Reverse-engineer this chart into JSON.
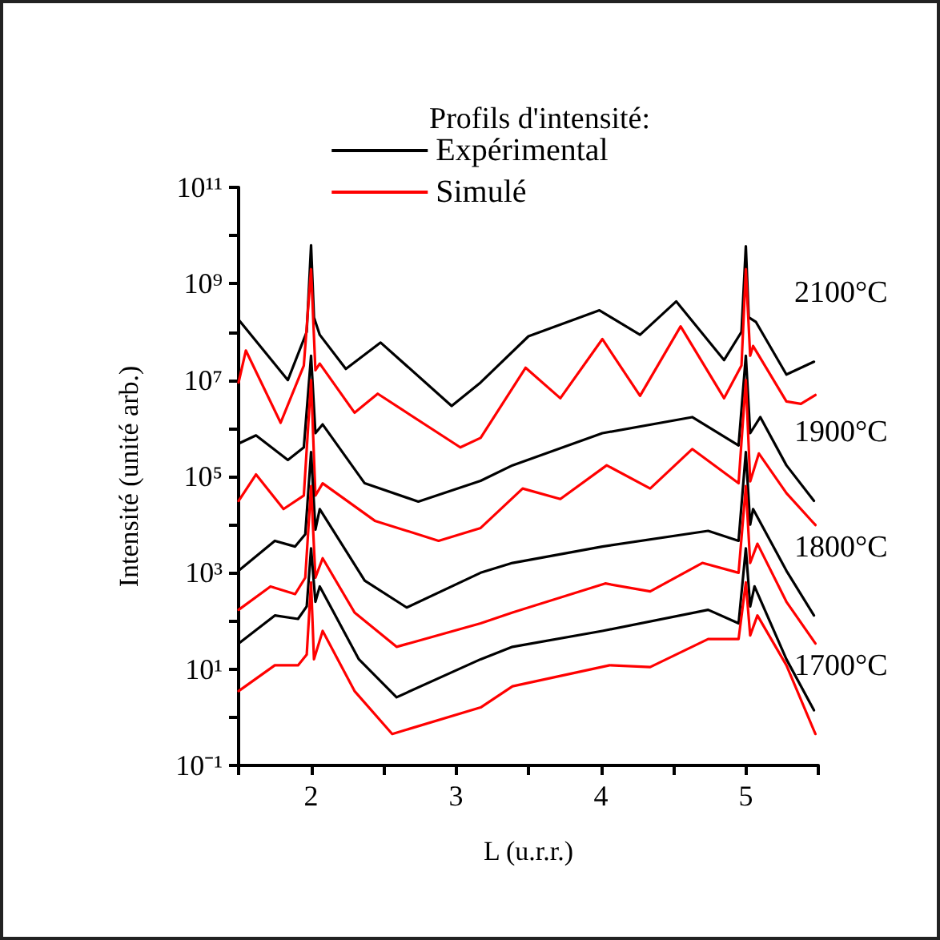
{
  "chart_data": {
    "type": "line",
    "legend_title": "Profils d'intensité:",
    "xlabel": "L (u.r.r.)",
    "ylabel": "Intensité (unité arb.)",
    "log": "y",
    "grid": false,
    "legend": "top",
    "marker": "none",
    "line_style": "solid",
    "xlim": [
      1.5,
      5.5
    ],
    "xticks": [
      {
        "value": 1.5,
        "label": null
      },
      2,
      {
        "value": 2.5,
        "label": null
      },
      3,
      {
        "value": 3.5,
        "label": null
      },
      4,
      {
        "value": 4.5,
        "label": null
      },
      5,
      {
        "value": 5.5,
        "label": null
      }
    ],
    "ylim": [
      0.1,
      100000000000.0
    ],
    "yticks": [
      {
        "value": 0.1,
        "label": "10⁻¹"
      },
      {
        "value": 1,
        "label": null
      },
      {
        "value": 10,
        "label": "10¹"
      },
      {
        "value": 100,
        "label": null
      },
      {
        "value": 1000,
        "label": "10³"
      },
      {
        "value": 10000.0,
        "label": null
      },
      {
        "value": 100000.0,
        "label": "10⁵"
      },
      {
        "value": 1000000.0,
        "label": null
      },
      {
        "value": 10000000.0,
        "label": "10⁷"
      },
      {
        "value": 100000000.0,
        "label": null
      },
      {
        "value": 1000000000.0,
        "label": "10⁹"
      },
      {
        "value": 10000000000.0,
        "label": null
      },
      {
        "value": 100000000000.0,
        "label": "10¹¹"
      }
    ],
    "series": [
      {
        "name": "Expérimental",
        "color": "#000000",
        "x": [
          1.5,
          1.84,
          1.97,
          2.0,
          2.02,
          2.06,
          2.24,
          2.48,
          2.97,
          3.17,
          3.5,
          3.99,
          4.27,
          4.52,
          4.85,
          4.97,
          5.0,
          5.02,
          5.07,
          5.28,
          5.47
        ],
        "values": [
          180000000.0,
          10000000.0,
          100000000.0,
          6300000000.0,
          200000000.0,
          87000000.0,
          17000000.0,
          60000000.0,
          2900000.0,
          8900000.0,
          81000000.0,
          280000000.0,
          87000000.0,
          430000000.0,
          26000000.0,
          100000000.0,
          6000000000.0,
          200000000.0,
          160000000.0,
          13000000.0,
          24000000.0
        ]
      },
      {
        "name": "Simulé",
        "color": "#ff0000",
        "x": [
          1.5,
          1.55,
          1.79,
          1.95,
          2.0,
          2.03,
          2.06,
          2.3,
          2.46,
          3.03,
          3.17,
          3.48,
          3.72,
          4.01,
          4.27,
          4.55,
          4.85,
          4.97,
          5.0,
          5.03,
          5.05,
          5.28,
          5.38,
          5.48
        ],
        "values": [
          8900000.0,
          41000000.0,
          1300000.0,
          20000000.0,
          2000000000.0,
          16000000.0,
          22000000.0,
          2100000.0,
          5200000.0,
          400000.0,
          630000.0,
          18000000.0,
          4200000.0,
          71000000.0,
          4700000.0,
          130000000.0,
          4200000.0,
          20000000.0,
          2000000000.0,
          32000000.0,
          51000000.0,
          3600000.0,
          3200000.0,
          4900000.0
        ]
      },
      {
        "color": "#000000",
        "x": [
          1.5,
          1.62,
          1.84,
          1.95,
          2.0,
          2.03,
          2.08,
          2.37,
          2.74,
          3.17,
          3.39,
          4.01,
          4.63,
          4.95,
          5.0,
          5.03,
          5.1,
          5.28,
          5.47
        ],
        "values": [
          480000.0,
          710000.0,
          220000.0,
          400000.0,
          32000000.0,
          790000.0,
          1200000.0,
          72000.0,
          30000.0,
          81000.0,
          170000.0,
          790000.0,
          1700000.0,
          440000.0,
          32000000.0,
          790000.0,
          1700000.0,
          170000.0,
          31000.0
        ]
      },
      {
        "color": "#ff0000",
        "x": [
          1.5,
          1.62,
          1.81,
          1.95,
          2.0,
          2.03,
          2.08,
          2.44,
          2.88,
          3.17,
          3.46,
          3.72,
          4.04,
          4.34,
          4.63,
          4.95,
          5.0,
          5.03,
          5.09,
          5.28,
          5.48
        ],
        "values": [
          31000.0,
          110000.0,
          21000.0,
          40000.0,
          10000000.0,
          40000.0,
          72000.0,
          12000.0,
          4600.0,
          8500.0,
          56000.0,
          34000.0,
          170000.0,
          56000.0,
          370000.0,
          72000.0,
          10000000.0,
          79000.0,
          300000.0,
          45000.0,
          9800.0
        ]
      },
      {
        "color": "#000000",
        "x": [
          1.5,
          1.75,
          1.89,
          1.96,
          2.0,
          2.03,
          2.06,
          2.37,
          2.66,
          3.17,
          3.39,
          4.01,
          4.74,
          4.95,
          5.0,
          5.03,
          5.05,
          5.28,
          5.47
        ],
        "values": [
          1100.0,
          4600.0,
          3500.0,
          6300.0,
          320000.0,
          7900.0,
          21000.0,
          690,
          190,
          1000.0,
          1600.0,
          3500.0,
          7400.0,
          4600.0,
          320000.0,
          10000.0,
          21000.0,
          1100.0,
          130
        ]
      },
      {
        "color": "#ff0000",
        "x": [
          1.5,
          1.72,
          1.89,
          1.96,
          2.0,
          2.03,
          2.08,
          2.3,
          2.59,
          3.17,
          3.39,
          4.03,
          4.34,
          4.7,
          4.95,
          5.0,
          5.03,
          5.08,
          5.28,
          5.48
        ],
        "values": [
          170,
          520,
          360,
          790,
          63000.0,
          790,
          2000.0,
          150,
          29,
          89,
          150,
          600,
          410,
          1600.0,
          1000.0,
          63000.0,
          1600.0,
          4000.0,
          250,
          34
        ]
      },
      {
        "color": "#000000",
        "x": [
          1.5,
          1.75,
          1.91,
          1.97,
          2.0,
          2.03,
          2.06,
          2.33,
          2.59,
          3.17,
          3.39,
          4.01,
          4.74,
          4.95,
          5.0,
          5.03,
          5.06,
          5.28,
          5.47
        ],
        "values": [
          34,
          130,
          110,
          200,
          3200.0,
          250,
          520,
          16,
          2.6,
          16,
          29,
          62,
          170,
          89,
          3200.0,
          200,
          520,
          16,
          1.4
        ]
      },
      {
        "color": "#ff0000",
        "x": [
          1.5,
          1.75,
          1.91,
          1.97,
          2.0,
          2.02,
          2.08,
          2.3,
          2.56,
          3.17,
          3.39,
          4.06,
          4.34,
          4.74,
          4.95,
          5.0,
          5.03,
          5.08,
          5.28,
          5.48
        ],
        "values": [
          3.5,
          12,
          12,
          20,
          630,
          16,
          62,
          3.5,
          0.45,
          1.6,
          4.4,
          12,
          11,
          42,
          42,
          630,
          50,
          130,
          12,
          0.45
        ]
      }
    ],
    "annotations": [
      "2100°C",
      "1900°C",
      "1800°C",
      "1700°C"
    ]
  }
}
